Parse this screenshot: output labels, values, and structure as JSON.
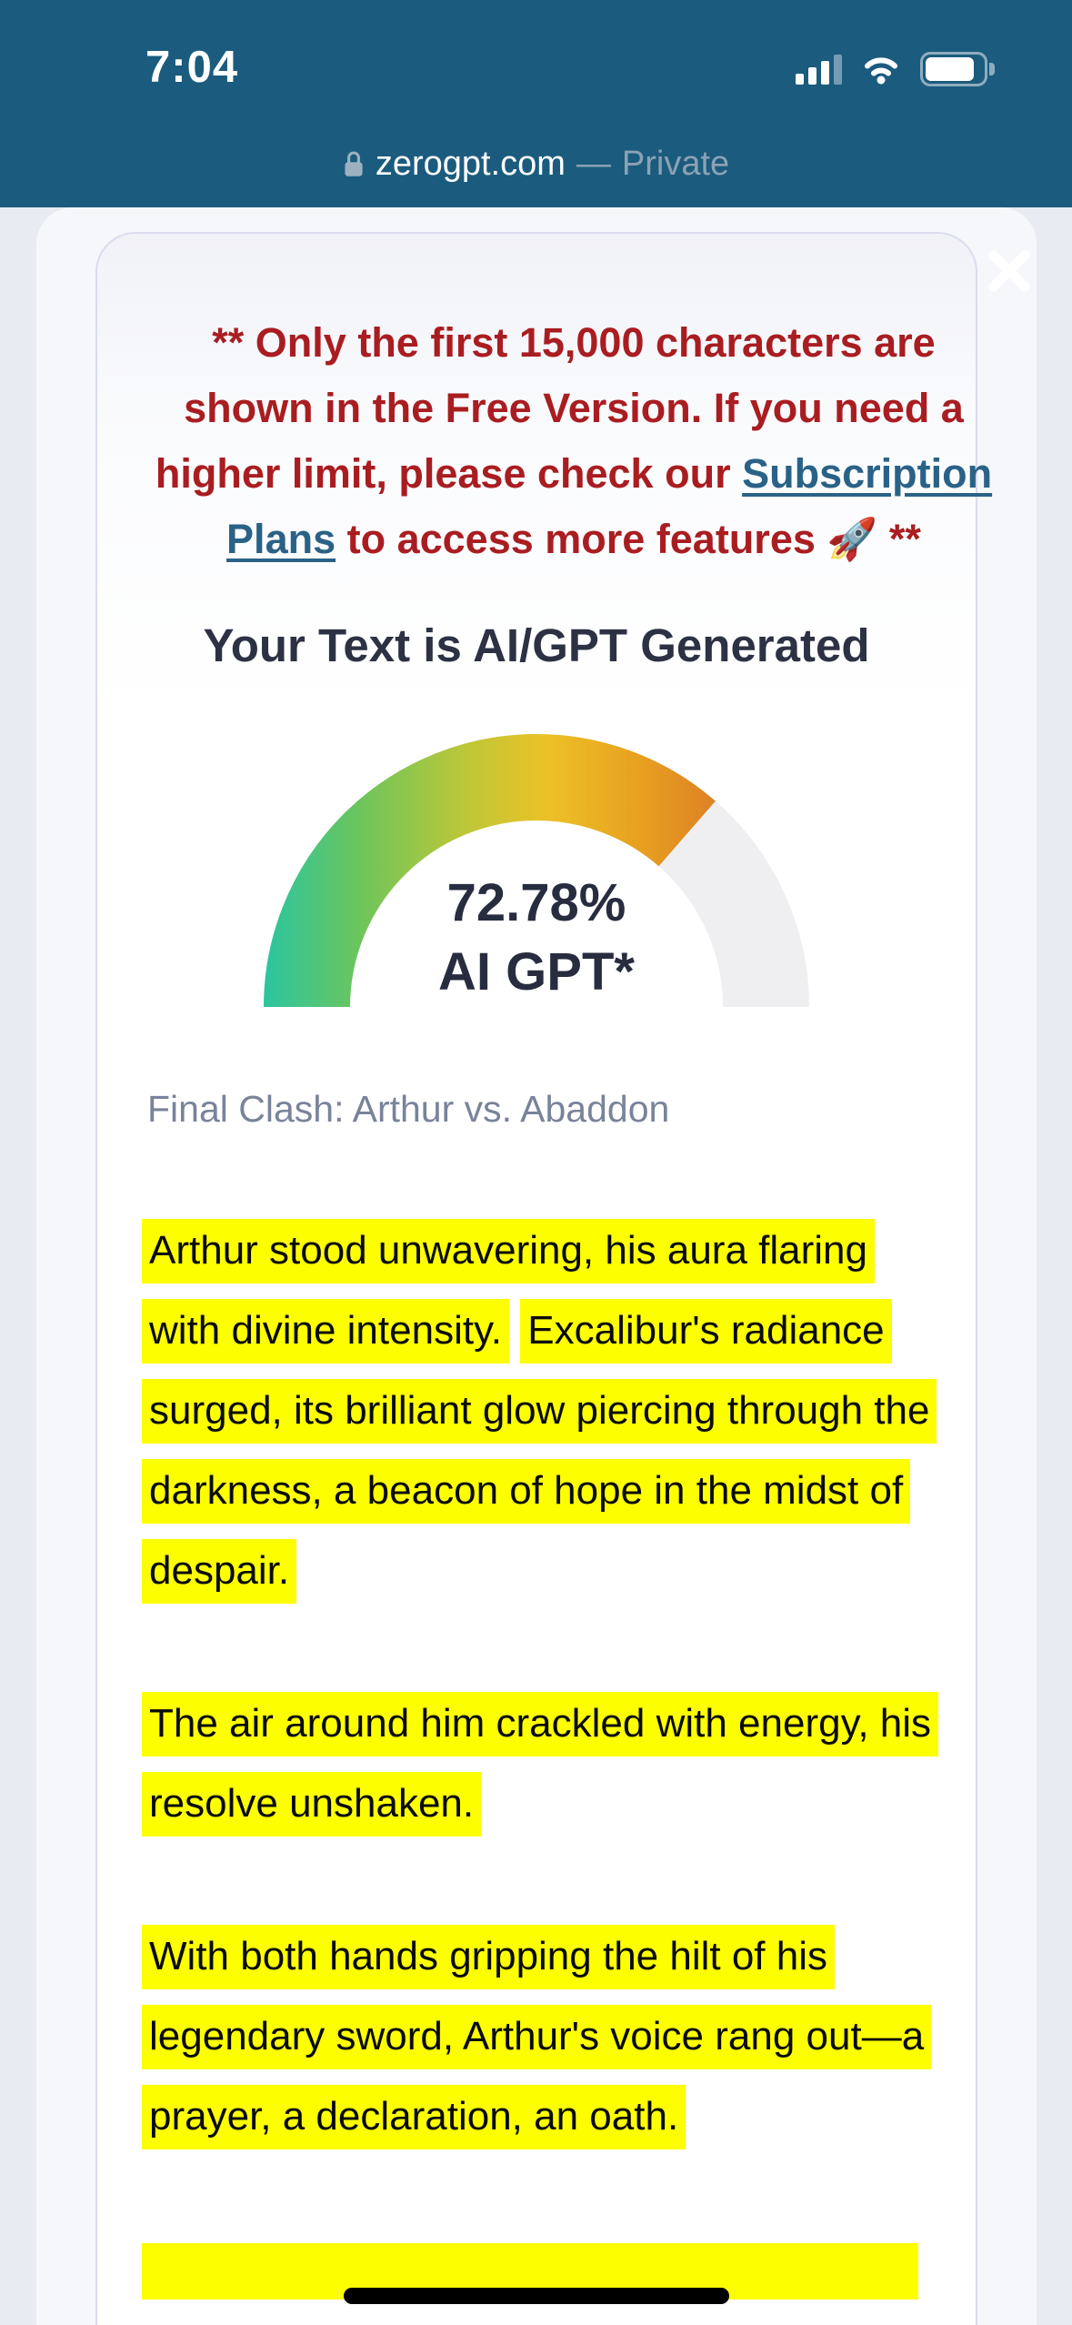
{
  "status_bar": {
    "time": "7:04",
    "signal_icon": "cellular-signal-icon",
    "wifi_icon": "wifi-icon",
    "battery_icon": "battery-icon"
  },
  "browser_bar": {
    "lock_icon": "lock-icon",
    "domain": "zerogpt.com",
    "separator": "—",
    "privacy_label": "Private"
  },
  "modal": {
    "close_icon": "close-x-icon",
    "notice": {
      "text_before_link": "** Only the first 15,000 characters are shown in the Free Version. If you need a higher limit, please check our ",
      "link_label": "Subscription Plans",
      "text_after_link": " to access more features 🚀 **"
    },
    "headline": "Your Text is AI/GPT Generated",
    "gauge": {
      "percent": 72.78,
      "value_label": "72.78%",
      "unit_label": "AI GPT*",
      "track_color": "#efeff1",
      "gradient_colors": [
        "#2bc5a0",
        "#6ec55b",
        "#c1c737",
        "#ecc126",
        "#e8a220",
        "#dd7f25",
        "#d0582e"
      ]
    },
    "document_title": "Final Clash: Arthur vs. Abaddon",
    "paragraphs": [
      [
        "Arthur stood unwavering, his aura flaring with divine intensity.",
        "Excalibur's radiance surged, its brilliant glow piercing through the darkness, a beacon of hope in the midst of despair."
      ],
      [
        "The air around him crackled with energy, his resolve unshaken."
      ],
      [
        "With both hands gripping the hilt of his legendary sword, Arthur's voice rang out—a prayer, a declaration, an oath."
      ]
    ],
    "more_content_below": true,
    "highlight_color": "#fdff00",
    "notice_color": "#a91d21",
    "link_color": "#2a6287"
  },
  "home_indicator": {
    "visible": true
  }
}
